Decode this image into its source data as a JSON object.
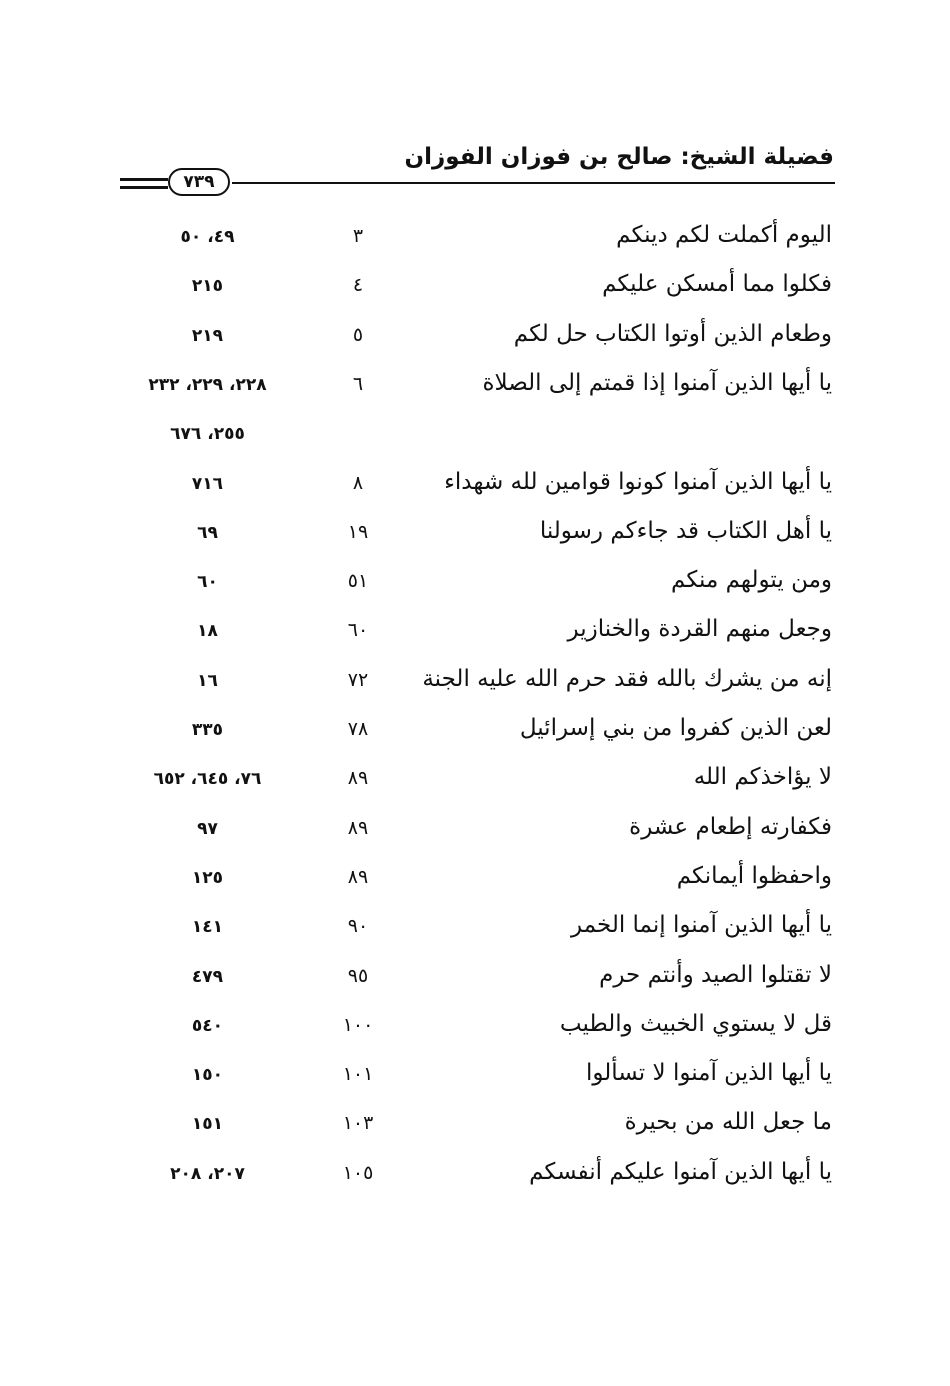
{
  "header": {
    "title": "فضيلة الشيخ: صالح بن فوزان الفوزان",
    "page_number": "٧٣٩"
  },
  "table": {
    "rows": [
      {
        "verse": "اليوم أكملت لكم دينكم",
        "number": "٣",
        "pages": [
          "٤٩، ٥٠"
        ]
      },
      {
        "verse": "فكلوا مما أمسكن عليكم",
        "number": "٤",
        "pages": [
          "٢١٥"
        ]
      },
      {
        "verse": "وطعام الذين أوتوا الكتاب حل لكم",
        "number": "٥",
        "pages": [
          "٢١٩"
        ]
      },
      {
        "verse": "يا أيها الذين آمنوا إذا قمتم إلى الصلاة",
        "number": "٦",
        "pages": [
          "٢٢٨، ٢٢٩، ٢٣٢",
          "٢٥٥، ٦٧٦"
        ]
      },
      {
        "verse": "يا أيها الذين آمنوا كونوا قوامين لله شهداء",
        "number": "٨",
        "pages": [
          "٧١٦"
        ]
      },
      {
        "verse": "يا أهل الكتاب قد جاءكم رسولنا",
        "number": "١٩",
        "pages": [
          "٦٩"
        ]
      },
      {
        "verse": "ومن يتولهم منكم",
        "number": "٥١",
        "pages": [
          "٦٠"
        ]
      },
      {
        "verse": "وجعل منهم القردة والخنازير",
        "number": "٦٠",
        "pages": [
          "١٨"
        ]
      },
      {
        "verse": "إنه من يشرك بالله فقد حرم الله عليه الجنة",
        "number": "٧٢",
        "pages": [
          "١٦"
        ]
      },
      {
        "verse": "لعن الذين كفروا من بني إسرائيل",
        "number": "٧٨",
        "pages": [
          "٣٣٥"
        ]
      },
      {
        "verse": "لا يؤاخذكم الله",
        "number": "٨٩",
        "pages": [
          "٧٦، ٦٤٥، ٦٥٢"
        ]
      },
      {
        "verse": "فكفارته إطعام عشرة",
        "number": "٨٩",
        "pages": [
          "٩٧"
        ]
      },
      {
        "verse": "واحفظوا أيمانكم",
        "number": "٨٩",
        "pages": [
          "١٢٥"
        ]
      },
      {
        "verse": "يا أيها الذين آمنوا إنما الخمر",
        "number": "٩٠",
        "pages": [
          "١٤١"
        ]
      },
      {
        "verse": "لا تقتلوا الصيد وأنتم حرم",
        "number": "٩٥",
        "pages": [
          "٤٧٩"
        ]
      },
      {
        "verse": "قل لا يستوي الخبيث والطيب",
        "number": "١٠٠",
        "pages": [
          "٥٤٠"
        ]
      },
      {
        "verse": "يا أيها الذين آمنوا لا تسألوا",
        "number": "١٠١",
        "pages": [
          "١٥٠"
        ]
      },
      {
        "verse": "ما جعل الله من بحيرة",
        "number": "١٠٣",
        "pages": [
          "١٥١"
        ]
      },
      {
        "verse": "يا أيها الذين آمنوا عليكم أنفسكم",
        "number": "١٠٥",
        "pages": [
          "٢٠٧، ٢٠٨"
        ]
      }
    ]
  }
}
